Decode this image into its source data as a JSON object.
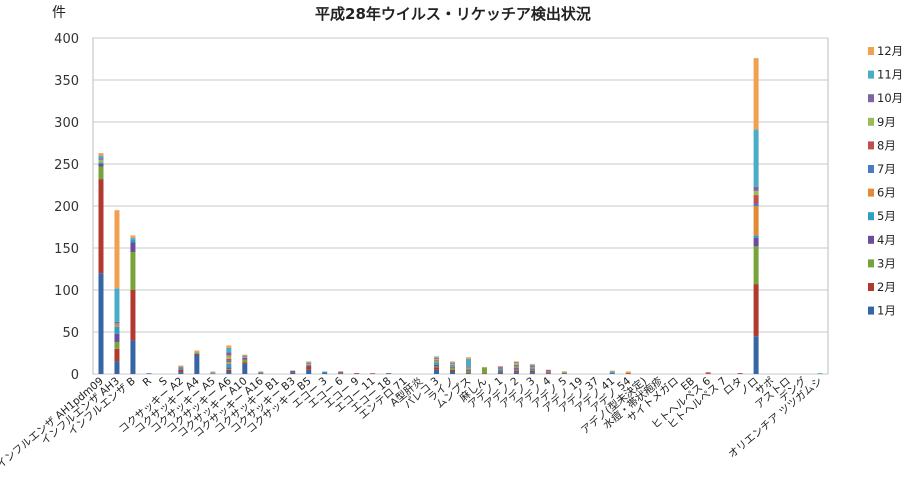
{
  "chart_data": {
    "type": "bar",
    "stacked": true,
    "title": "平成28年ウイルス・リケッチア検出状況",
    "ylabel": "件",
    "xlabel": "",
    "ylim": [
      0,
      400
    ],
    "yticks": [
      0,
      50,
      100,
      150,
      200,
      250,
      300,
      350,
      400
    ],
    "grid": true,
    "legend_position": "right",
    "categories": [
      "インフルエンザ AH1pdm09",
      "インフルエンザ AH3",
      "インフルエンザ B",
      "R",
      "S",
      "コクサッキー A2",
      "コクサッキー A4",
      "コクサッキー A5",
      "コクサッキー A6",
      "コクサッキー A10",
      "コクサッキー A16",
      "コクサッキー B1",
      "コクサッキー B3",
      "コクサッキー B5",
      "エコー 3",
      "エコー 6",
      "エコー 9",
      "エコー 11",
      "エコー 18",
      "エンテロ 71",
      "A型肝炎",
      "パレコ 3",
      "ライノ",
      "ムンプス",
      "麻しん",
      "アデノ 1",
      "アデノ 2",
      "アデノ 3",
      "アデノ 4",
      "アデノ 5",
      "アデノ 19",
      "アデノ 37",
      "アデノ 41",
      "アデノ 54",
      "アデノ(型未決定)",
      "水痘・帯状疱疹",
      "サイトメガロ",
      "EB",
      "ヒトヘルペス 6",
      "ヒトヘルペス 7",
      "ロタ",
      "ノロ",
      "サポ",
      "アストロ",
      "デング",
      "オリエンチア ツツガムシ"
    ],
    "series": [
      {
        "name": "1月",
        "color": "#3465a4",
        "values": [
          120,
          15,
          40,
          0,
          0,
          2,
          22,
          0,
          3,
          12,
          1,
          0,
          2,
          5,
          2,
          1,
          0,
          0,
          1,
          0,
          0,
          5,
          3,
          1,
          0,
          2,
          2,
          2,
          1,
          1,
          0,
          0,
          1,
          0,
          0,
          0,
          0,
          0,
          0,
          0,
          0,
          45,
          0,
          0,
          0,
          0
        ]
      },
      {
        "name": "2月",
        "color": "#b03a2e",
        "values": [
          112,
          15,
          60,
          0,
          0,
          3,
          2,
          0,
          2,
          2,
          0,
          0,
          1,
          4,
          0,
          1,
          1,
          0,
          0,
          0,
          0,
          3,
          2,
          1,
          1,
          1,
          2,
          2,
          1,
          0,
          0,
          0,
          0,
          1,
          0,
          0,
          0,
          0,
          1,
          0,
          1,
          62,
          0,
          0,
          0,
          0
        ]
      },
      {
        "name": "3月",
        "color": "#76a33a",
        "values": [
          15,
          8,
          45,
          0,
          0,
          0,
          1,
          0,
          1,
          3,
          0,
          0,
          0,
          0,
          0,
          0,
          0,
          0,
          0,
          0,
          0,
          1,
          2,
          2,
          7,
          1,
          1,
          1,
          0,
          1,
          0,
          0,
          0,
          0,
          0,
          0,
          0,
          0,
          0,
          0,
          0,
          45,
          0,
          0,
          0,
          0
        ]
      },
      {
        "name": "4月",
        "color": "#6b4e9b",
        "values": [
          3,
          10,
          12,
          0,
          0,
          0,
          0,
          0,
          2,
          2,
          0,
          0,
          0,
          1,
          0,
          0,
          0,
          0,
          0,
          0,
          0,
          2,
          1,
          1,
          0,
          1,
          2,
          1,
          0,
          0,
          0,
          0,
          0,
          0,
          0,
          0,
          0,
          0,
          0,
          0,
          0,
          10,
          0,
          0,
          0,
          0
        ]
      },
      {
        "name": "5月",
        "color": "#2e9fbf",
        "values": [
          2,
          8,
          3,
          0,
          0,
          0,
          0,
          0,
          4,
          0,
          0,
          0,
          0,
          1,
          0,
          0,
          0,
          0,
          0,
          0,
          0,
          3,
          1,
          1,
          0,
          1,
          1,
          1,
          0,
          0,
          0,
          0,
          0,
          0,
          0,
          0,
          0,
          0,
          0,
          0,
          0,
          3,
          0,
          0,
          0,
          0
        ]
      },
      {
        "name": "6月",
        "color": "#e08a35",
        "values": [
          0,
          2,
          0,
          0,
          0,
          0,
          0,
          0,
          2,
          1,
          0,
          0,
          0,
          1,
          0,
          0,
          0,
          0,
          0,
          0,
          0,
          2,
          1,
          1,
          0,
          0,
          1,
          1,
          1,
          1,
          0,
          0,
          0,
          1,
          0,
          0,
          0,
          0,
          0,
          0,
          0,
          35,
          0,
          0,
          0,
          0
        ]
      },
      {
        "name": "7月",
        "color": "#4a7bc4",
        "values": [
          0,
          1,
          0,
          1,
          0,
          2,
          0,
          0,
          2,
          0,
          0,
          0,
          0,
          0,
          0,
          0,
          0,
          0,
          0,
          0,
          0,
          1,
          1,
          1,
          0,
          1,
          1,
          1,
          1,
          0,
          0,
          0,
          1,
          0,
          0,
          0,
          0,
          0,
          0,
          0,
          0,
          3,
          0,
          0,
          0,
          0
        ]
      },
      {
        "name": "8月",
        "color": "#c0504d",
        "values": [
          0,
          0,
          0,
          0,
          0,
          1,
          0,
          0,
          2,
          0,
          1,
          0,
          0,
          0,
          0,
          1,
          0,
          1,
          0,
          0,
          0,
          0,
          0,
          0,
          0,
          1,
          1,
          0,
          1,
          0,
          0,
          0,
          0,
          0,
          0,
          0,
          0,
          0,
          1,
          0,
          0,
          10,
          0,
          0,
          0,
          0
        ]
      },
      {
        "name": "9月",
        "color": "#9bbb59",
        "values": [
          3,
          1,
          0,
          0,
          0,
          0,
          0,
          0,
          4,
          0,
          1,
          0,
          0,
          0,
          0,
          0,
          0,
          0,
          0,
          0,
          0,
          1,
          1,
          1,
          0,
          0,
          2,
          0,
          0,
          0,
          0,
          0,
          0,
          0,
          0,
          0,
          0,
          0,
          0,
          0,
          0,
          5,
          0,
          0,
          0,
          0
        ]
      },
      {
        "name": "10月",
        "color": "#8064a2",
        "values": [
          2,
          2,
          0,
          0,
          0,
          0,
          0,
          1,
          4,
          1,
          0,
          0,
          1,
          1,
          0,
          0,
          0,
          0,
          0,
          0,
          0,
          1,
          1,
          1,
          0,
          1,
          1,
          1,
          0,
          0,
          0,
          0,
          0,
          0,
          0,
          0,
          0,
          0,
          0,
          0,
          0,
          5,
          0,
          0,
          0,
          0
        ]
      },
      {
        "name": "11月",
        "color": "#4bacc6",
        "values": [
          3,
          40,
          2,
          0,
          0,
          1,
          1,
          1,
          5,
          1,
          0,
          0,
          0,
          1,
          1,
          0,
          0,
          0,
          0,
          0,
          0,
          1,
          1,
          8,
          0,
          0,
          0,
          1,
          0,
          0,
          0,
          0,
          1,
          0,
          0,
          0,
          0,
          0,
          0,
          0,
          0,
          68,
          0,
          0,
          0,
          1
        ]
      },
      {
        "name": "12月",
        "color": "#f0a050",
        "values": [
          3,
          93,
          3,
          0,
          0,
          1,
          2,
          1,
          3,
          1,
          0,
          0,
          0,
          1,
          0,
          0,
          0,
          0,
          0,
          0,
          0,
          1,
          1,
          2,
          0,
          0,
          1,
          1,
          0,
          0,
          0,
          0,
          1,
          1,
          0,
          0,
          0,
          0,
          0,
          0,
          0,
          85,
          0,
          0,
          0,
          0
        ]
      }
    ]
  },
  "chart_labels": {
    "unit": "件",
    "title": "平成28年ウイルス・リケッチア検出状況"
  }
}
